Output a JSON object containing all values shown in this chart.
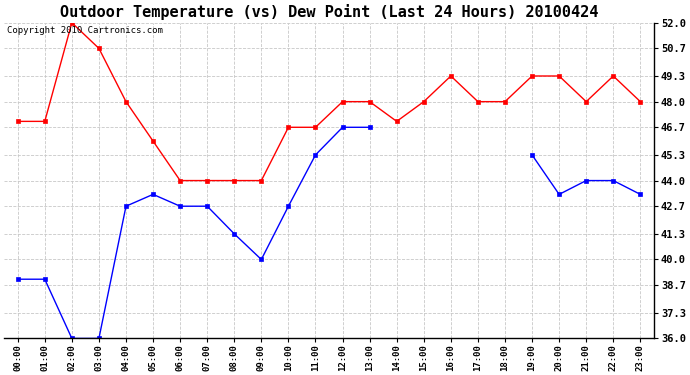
{
  "title": "Outdoor Temperature (vs) Dew Point (Last 24 Hours) 20100424",
  "copyright": "Copyright 2010 Cartronics.com",
  "x_labels": [
    "00:00",
    "01:00",
    "02:00",
    "03:00",
    "04:00",
    "05:00",
    "06:00",
    "07:00",
    "08:00",
    "09:00",
    "10:00",
    "11:00",
    "12:00",
    "13:00",
    "14:00",
    "15:00",
    "16:00",
    "17:00",
    "18:00",
    "19:00",
    "20:00",
    "21:00",
    "22:00",
    "23:00"
  ],
  "temp_red": [
    47.0,
    47.0,
    52.0,
    50.7,
    48.0,
    46.0,
    44.0,
    44.0,
    44.0,
    44.0,
    46.7,
    46.7,
    48.0,
    48.0,
    47.0,
    48.0,
    49.3,
    48.0,
    48.0,
    49.3,
    49.3,
    48.0,
    49.3,
    48.0
  ],
  "dew_blue": [
    39.0,
    39.0,
    36.0,
    36.0,
    42.7,
    43.3,
    42.7,
    42.7,
    41.3,
    40.0,
    42.7,
    45.3,
    46.7,
    46.7,
    null,
    null,
    null,
    null,
    null,
    45.3,
    43.3,
    44.0,
    44.0,
    43.3
  ],
  "ylim": [
    36.0,
    52.0
  ],
  "yticks": [
    36.0,
    37.3,
    38.7,
    40.0,
    41.3,
    42.7,
    44.0,
    45.3,
    46.7,
    48.0,
    49.3,
    50.7,
    52.0
  ],
  "red_color": "#ff0000",
  "blue_color": "#0000ff",
  "bg_color": "#ffffff",
  "grid_color": "#c8c8c8",
  "title_fontsize": 11,
  "copyright_fontsize": 6.5,
  "marker_size": 3,
  "line_width": 1.0
}
